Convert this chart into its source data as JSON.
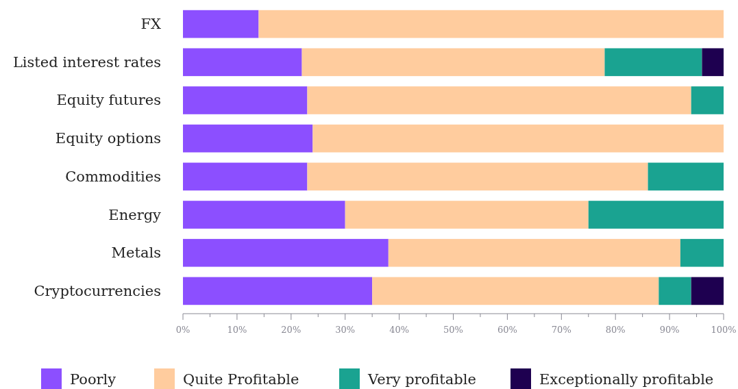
{
  "chart_data": {
    "type": "bar",
    "orientation": "horizontal",
    "stacked": true,
    "categories": [
      "FX",
      "Listed interest rates",
      "Equity futures",
      "Equity options",
      "Commodities",
      "Energy",
      "Metals",
      "Cryptocurrencies"
    ],
    "series": [
      {
        "name": "Poorly",
        "color": "#8c4fff",
        "values": [
          14,
          22,
          23,
          24,
          23,
          30,
          38,
          35
        ]
      },
      {
        "name": "Quite Profitable",
        "color": "#ffcc9e",
        "values": [
          86,
          56,
          71,
          76,
          63,
          45,
          54,
          53
        ]
      },
      {
        "name": "Very profitable",
        "color": "#1aa391",
        "values": [
          0,
          18,
          6,
          0,
          14,
          25,
          8,
          6
        ]
      },
      {
        "name": "Exceptionally profitable",
        "color": "#1e0050",
        "values": [
          0,
          4,
          0,
          0,
          0,
          0,
          0,
          6
        ]
      }
    ],
    "xlim": [
      0,
      100
    ],
    "xticks": [
      {
        "value": 0,
        "label": "0%"
      },
      {
        "value": 5,
        "label": null
      },
      {
        "value": 10,
        "label": "10%"
      },
      {
        "value": 15,
        "label": null
      },
      {
        "value": 20,
        "label": "20%"
      },
      {
        "value": 25,
        "label": null
      },
      {
        "value": 30,
        "label": "30%"
      },
      {
        "value": 35,
        "label": null
      },
      {
        "value": 40,
        "label": "40%"
      },
      {
        "value": 45,
        "label": null
      },
      {
        "value": 50,
        "label": "50%"
      },
      {
        "value": 55,
        "label": null
      },
      {
        "value": 60,
        "label": "60%"
      },
      {
        "value": 65,
        "label": null
      },
      {
        "value": 70,
        "label": "70%"
      },
      {
        "value": 75,
        "label": null
      },
      {
        "value": 80,
        "label": "80%"
      },
      {
        "value": 85,
        "label": null
      },
      {
        "value": 90,
        "label": "90%"
      },
      {
        "value": 95,
        "label": null
      },
      {
        "value": 100,
        "label": "100%"
      }
    ],
    "grid": false,
    "legend": "bottom"
  }
}
